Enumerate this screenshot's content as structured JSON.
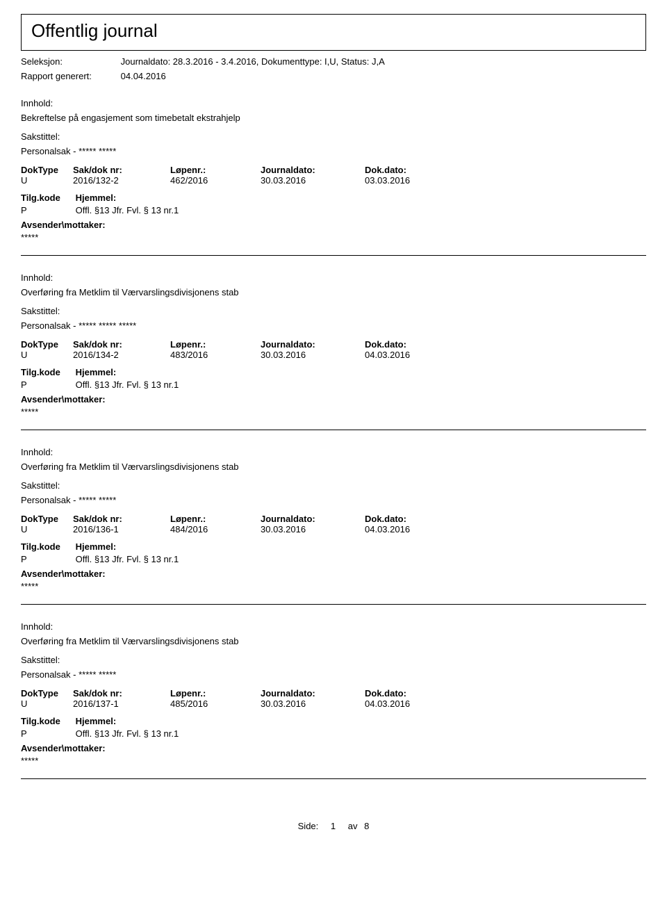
{
  "header": {
    "title": "Offentlig journal",
    "seleksjon_label": "Seleksjon:",
    "seleksjon_value": "Journaldato: 28.3.2016 - 3.4.2016, Dokumenttype: I,U, Status: J,A",
    "rapport_label": "Rapport generert:",
    "rapport_value": "04.04.2016"
  },
  "labels": {
    "innhold": "Innhold:",
    "sakstittel": "Sakstittel:",
    "doktype": "DokType",
    "sakdok": "Sak/dok nr:",
    "lopenr": "Løpenr.:",
    "journaldato": "Journaldato:",
    "dokdato": "Dok.dato:",
    "tilgkode": "Tilg.kode",
    "hjemmel": "Hjemmel:",
    "avsender": "Avsender\\mottaker:"
  },
  "entries": [
    {
      "innhold": "Bekreftelse på engasjement som timebetalt ekstrahjelp",
      "sakstittel": "Personalsak - ***** *****",
      "doktype": "U",
      "sakdok": "2016/132-2",
      "lopenr": "462/2016",
      "journaldato": "30.03.2016",
      "dokdato": "03.03.2016",
      "tilgkode": "P",
      "hjemmel": "Offl. §13 Jfr. Fvl. § 13 nr.1",
      "avsender": "*****"
    },
    {
      "innhold": "Overføring fra Metklim til Værvarslingsdivisjonens stab",
      "sakstittel": "Personalsak - ***** ***** *****",
      "doktype": "U",
      "sakdok": "2016/134-2",
      "lopenr": "483/2016",
      "journaldato": "30.03.2016",
      "dokdato": "04.03.2016",
      "tilgkode": "P",
      "hjemmel": "Offl. §13 Jfr. Fvl. § 13 nr.1",
      "avsender": "*****"
    },
    {
      "innhold": "Overføring fra Metklim til Værvarslingsdivisjonens stab",
      "sakstittel": "Personalsak - ***** *****",
      "doktype": "U",
      "sakdok": "2016/136-1",
      "lopenr": "484/2016",
      "journaldato": "30.03.2016",
      "dokdato": "04.03.2016",
      "tilgkode": "P",
      "hjemmel": "Offl. §13 Jfr. Fvl. § 13 nr.1",
      "avsender": "*****"
    },
    {
      "innhold": "Overføring fra Metklim til Værvarslingsdivisjonens stab",
      "sakstittel": "Personalsak - ***** *****",
      "doktype": "U",
      "sakdok": "2016/137-1",
      "lopenr": "485/2016",
      "journaldato": "30.03.2016",
      "dokdato": "04.03.2016",
      "tilgkode": "P",
      "hjemmel": "Offl. §13 Jfr. Fvl. § 13 nr.1",
      "avsender": "*****"
    }
  ],
  "footer": {
    "label": "Side:",
    "page": "1",
    "of": "av",
    "total": "8"
  }
}
